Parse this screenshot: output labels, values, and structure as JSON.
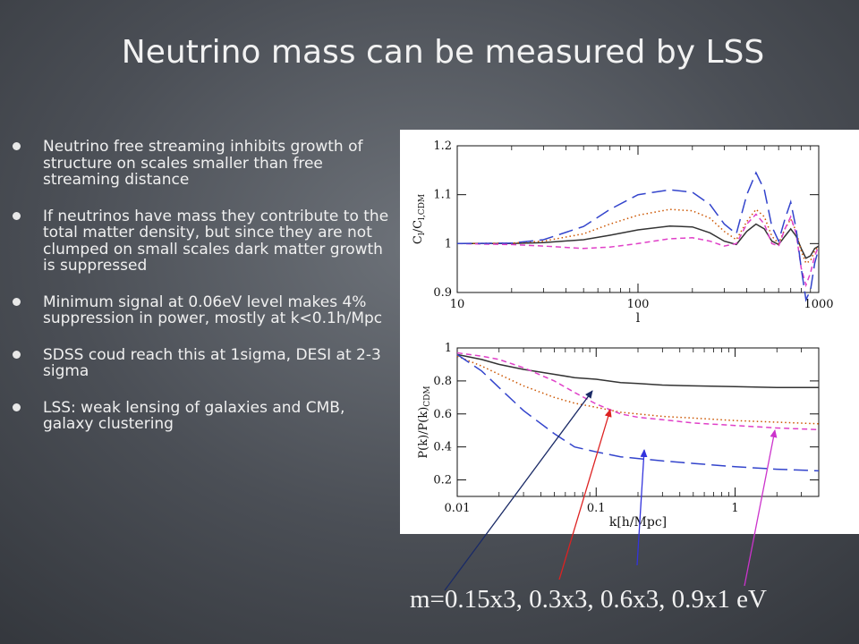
{
  "slide": {
    "title": "Neutrino mass can be measured by LSS",
    "bullets": [
      "Neutrino free streaming inhibits growth of structure on scales smaller than free streaming distance",
      "If neutrinos have mass they contribute to the total matter density, but since they are not clumped on small scales dark matter growth is suppressed",
      "Minimum signal at 0.06eV level makes 4% suppression in power, mostly at k<0.1h/Mpc",
      "SDSS coud reach this at 1sigma, DESI at 2-3 sigma",
      "LSS: weak lensing of galaxies and CMB, galaxy clustering"
    ],
    "caption": "m=0.15x3,  0.3x3,  0.6x3,  0.9x1 eV"
  },
  "colors": {
    "solid": "#333333",
    "dotted": "#cc5500",
    "short_dash": "#e040c8",
    "long_dash": "#3344cc",
    "arrow_blue_dark": "#1a2a66",
    "arrow_red": "#dd2222",
    "arrow_blue": "#3333dd",
    "arrow_magenta": "#cc33cc"
  },
  "chart_data": [
    {
      "type": "line",
      "xscale": "log",
      "xlim": [
        10,
        1000
      ],
      "ylim": [
        0.9,
        1.2
      ],
      "xticks": [
        {
          "v": 10,
          "label": "10"
        },
        {
          "v": 100,
          "label": "100"
        },
        {
          "v": 1000,
          "label": "1000"
        }
      ],
      "yticks": [
        {
          "v": 0.9,
          "label": "0.9"
        },
        {
          "v": 1.0,
          "label": "1"
        },
        {
          "v": 1.1,
          "label": "1.1"
        },
        {
          "v": 1.2,
          "label": "1.2"
        }
      ],
      "xlabel": "l",
      "ylabel": "C_l/C_l,CDM",
      "ylabel_main": "C",
      "ylabel_sub1": "l",
      "ylabel_mid": "/C",
      "ylabel_sub2": "l,CDM",
      "series": [
        {
          "style": "solid",
          "x": [
            10,
            20,
            30,
            50,
            70,
            100,
            150,
            200,
            250,
            300,
            350,
            400,
            450,
            500,
            550,
            600,
            650,
            700,
            750,
            800,
            850,
            900,
            950,
            1000
          ],
          "y": [
            1.0,
            1.0,
            1.002,
            1.008,
            1.017,
            1.028,
            1.036,
            1.034,
            1.022,
            1.005,
            0.998,
            1.025,
            1.04,
            1.03,
            1.005,
            0.998,
            1.015,
            1.03,
            1.015,
            0.99,
            0.97,
            0.975,
            0.99,
            0.995
          ]
        },
        {
          "style": "dotted",
          "x": [
            10,
            20,
            30,
            50,
            70,
            100,
            150,
            200,
            250,
            300,
            350,
            400,
            450,
            500,
            550,
            600,
            650,
            700,
            750,
            800,
            850,
            900,
            950,
            1000
          ],
          "y": [
            1.0,
            1.001,
            1.005,
            1.02,
            1.04,
            1.058,
            1.07,
            1.067,
            1.052,
            1.025,
            1.008,
            1.045,
            1.07,
            1.055,
            1.015,
            1.0,
            1.03,
            1.05,
            1.025,
            0.985,
            0.96,
            0.965,
            0.985,
            0.995
          ]
        },
        {
          "style": "short_dash",
          "x": [
            10,
            20,
            30,
            50,
            70,
            100,
            150,
            200,
            250,
            300,
            350,
            400,
            450,
            500,
            550,
            600,
            650,
            700,
            750,
            800,
            850,
            900,
            950,
            1000
          ],
          "y": [
            1.0,
            0.998,
            0.995,
            0.99,
            0.993,
            1.0,
            1.01,
            1.012,
            1.005,
            0.995,
            1.0,
            1.04,
            1.06,
            1.04,
            1.0,
            0.995,
            1.03,
            1.055,
            1.02,
            0.95,
            0.915,
            0.94,
            0.975,
            0.995
          ]
        },
        {
          "style": "long_dash",
          "x": [
            10,
            20,
            30,
            50,
            70,
            100,
            150,
            200,
            250,
            300,
            350,
            400,
            450,
            500,
            550,
            600,
            650,
            700,
            750,
            800,
            850,
            900,
            950,
            1000
          ],
          "y": [
            1.0,
            1.001,
            1.008,
            1.035,
            1.07,
            1.1,
            1.11,
            1.105,
            1.08,
            1.04,
            1.02,
            1.1,
            1.145,
            1.11,
            1.035,
            1.005,
            1.05,
            1.085,
            1.03,
            0.95,
            0.885,
            0.905,
            0.96,
            0.99
          ]
        }
      ]
    },
    {
      "type": "line",
      "xscale": "log",
      "xlim": [
        0.01,
        4
      ],
      "ylim": [
        0.1,
        1.0
      ],
      "xticks": [
        {
          "v": 0.01,
          "label": "0.01"
        },
        {
          "v": 0.1,
          "label": "0.1"
        },
        {
          "v": 1,
          "label": "1"
        }
      ],
      "yticks": [
        {
          "v": 0.2,
          "label": "0.2"
        },
        {
          "v": 0.4,
          "label": "0.4"
        },
        {
          "v": 0.6,
          "label": "0.6"
        },
        {
          "v": 0.8,
          "label": "0.8"
        },
        {
          "v": 1.0,
          "label": "1"
        }
      ],
      "xlabel": "k[h/Mpc]",
      "ylabel": "P(k)/P(k)_CDM",
      "ylabel_main": "P(k)/P(k)",
      "ylabel_sub": "CDM",
      "series": [
        {
          "style": "solid",
          "x": [
            0.01,
            0.015,
            0.02,
            0.03,
            0.05,
            0.07,
            0.1,
            0.15,
            0.2,
            0.3,
            0.5,
            1,
            2,
            4
          ],
          "y": [
            0.96,
            0.93,
            0.9,
            0.87,
            0.84,
            0.82,
            0.81,
            0.79,
            0.785,
            0.775,
            0.77,
            0.765,
            0.76,
            0.76
          ]
        },
        {
          "style": "dotted",
          "x": [
            0.01,
            0.015,
            0.02,
            0.03,
            0.05,
            0.07,
            0.1,
            0.15,
            0.2,
            0.3,
            0.5,
            1,
            2,
            4
          ],
          "y": [
            0.95,
            0.89,
            0.84,
            0.77,
            0.7,
            0.665,
            0.64,
            0.61,
            0.6,
            0.585,
            0.575,
            0.56,
            0.55,
            0.54
          ]
        },
        {
          "style": "short_dash",
          "x": [
            0.01,
            0.015,
            0.02,
            0.03,
            0.05,
            0.07,
            0.1,
            0.15,
            0.2,
            0.3,
            0.5,
            1,
            2,
            4
          ],
          "y": [
            0.97,
            0.95,
            0.93,
            0.88,
            0.8,
            0.73,
            0.66,
            0.6,
            0.58,
            0.565,
            0.545,
            0.53,
            0.515,
            0.505
          ]
        },
        {
          "style": "long_dash",
          "x": [
            0.01,
            0.015,
            0.02,
            0.03,
            0.05,
            0.07,
            0.1,
            0.15,
            0.2,
            0.3,
            0.5,
            1,
            2,
            4
          ],
          "y": [
            0.96,
            0.86,
            0.76,
            0.62,
            0.48,
            0.4,
            0.37,
            0.34,
            0.33,
            0.315,
            0.3,
            0.28,
            0.265,
            0.255
          ]
        }
      ]
    }
  ]
}
